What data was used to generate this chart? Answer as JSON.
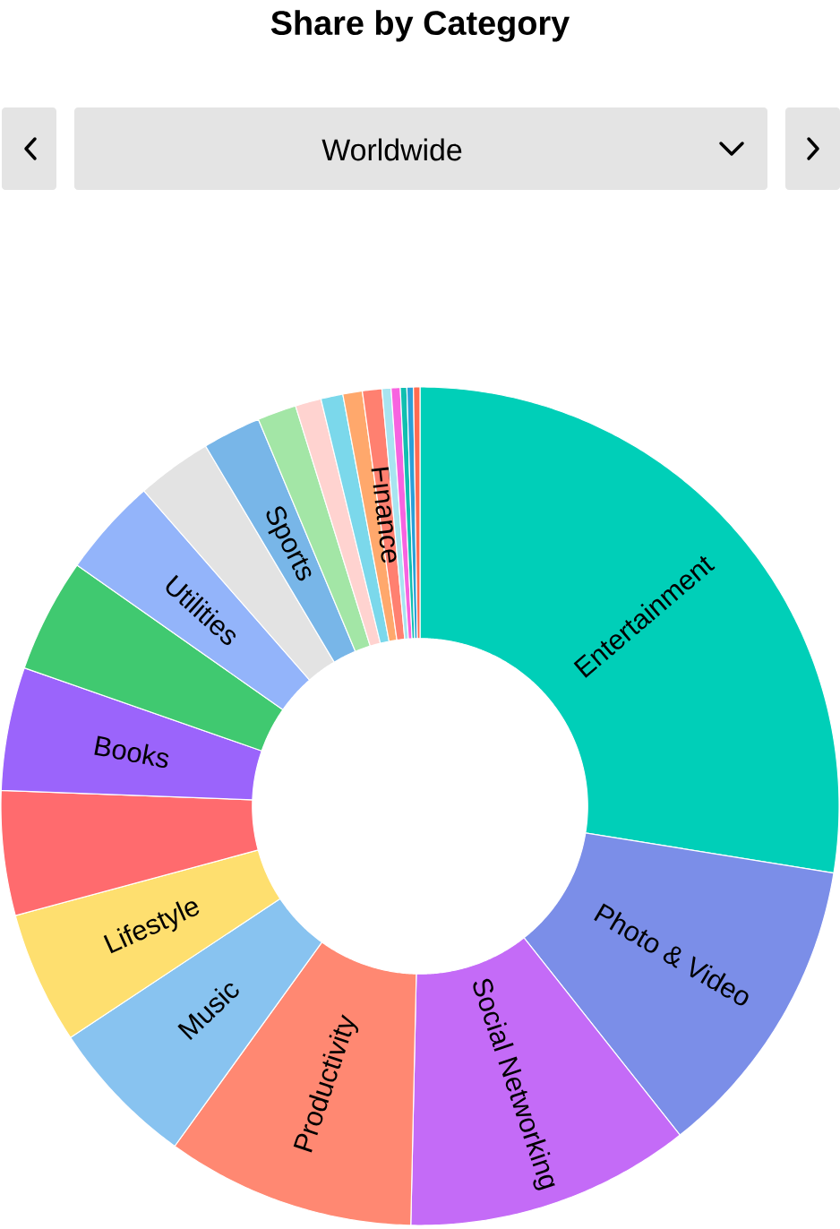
{
  "chart_data": {
    "type": "donut",
    "title": "Share by Category",
    "subtitle": "Worldwide",
    "categories": [
      "Entertainment",
      "Photo & Video",
      "Social Networking",
      "Productivity",
      "Music",
      "Lifestyle",
      null,
      "Books",
      null,
      "Utilities",
      null,
      "Sports",
      null,
      null,
      null,
      null,
      "Finance",
      null,
      null,
      null,
      null,
      null
    ],
    "values": [
      27.55,
      11.8,
      11.0,
      9.6,
      5.75,
      5.1,
      4.8,
      4.75,
      4.4,
      3.8,
      2.9,
      2.25,
      1.5,
      1.0,
      0.85,
      0.75,
      0.75,
      0.35,
      0.35,
      0.25,
      0.25,
      0.25
    ],
    "colors": [
      "#00cfb8",
      "#7b8ee8",
      "#c46bf7",
      "#ff8872",
      "#88c3f0",
      "#fedf6f",
      "#ff6b6e",
      "#9b64fb",
      "#40c970",
      "#93b4fa",
      "#e3e3e3",
      "#78b6e8",
      "#a3e6a6",
      "#ffd3d0",
      "#7bd8eb",
      "#ffa86c",
      "#ff8070",
      "#a8e4f0",
      "#f763e0",
      "#10bfb0",
      "#2aa0d8",
      "#ff6b50"
    ]
  }
}
